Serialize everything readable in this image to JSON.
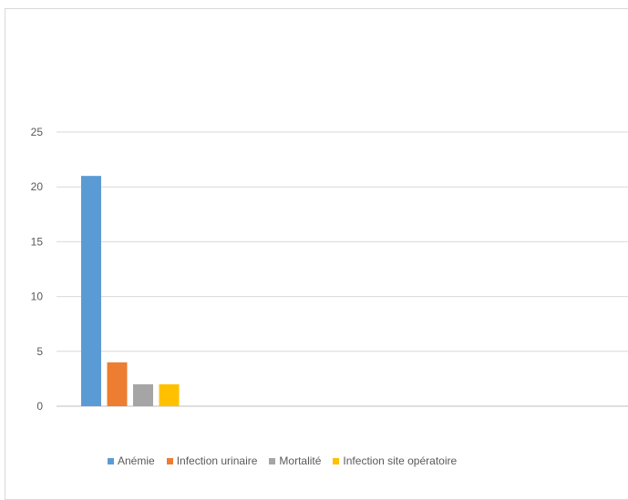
{
  "chart_data": {
    "type": "bar",
    "title": "",
    "xlabel": "",
    "ylabel": "",
    "ylim": [
      0,
      25
    ],
    "yticks": [
      0,
      5,
      10,
      15,
      20,
      25
    ],
    "grid": true,
    "legend_position": "bottom",
    "series": [
      {
        "name": "Anémie",
        "value": 21,
        "color": "#5b9bd5"
      },
      {
        "name": "Infection urinaire",
        "value": 4,
        "color": "#ed7d31"
      },
      {
        "name": "Mortalité",
        "value": 2,
        "color": "#a5a5a5"
      },
      {
        "name": "Infection site opératoire",
        "value": 2,
        "color": "#ffc000"
      }
    ]
  }
}
